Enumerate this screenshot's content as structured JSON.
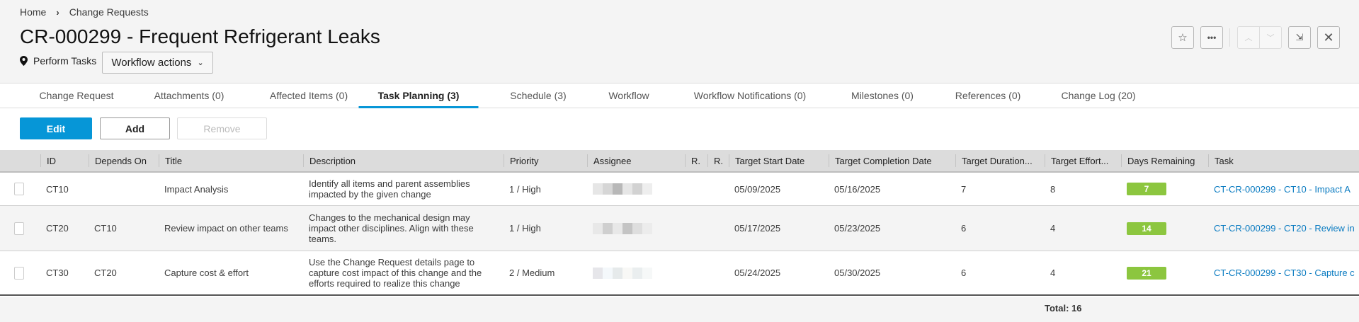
{
  "breadcrumb": {
    "home": "Home",
    "current": "Change Requests"
  },
  "header": {
    "title": "CR-000299 - Frequent Refrigerant Leaks",
    "stage": "Perform Tasks",
    "workflow_actions": "Workflow actions"
  },
  "icons": {
    "star": "star-icon",
    "more": "more-icon",
    "up": "chevron-up-icon",
    "down": "chevron-down-icon",
    "collapse": "collapse-icon",
    "close": "close-icon"
  },
  "tabs": [
    {
      "label": "Change Request"
    },
    {
      "label": "Attachments (0)"
    },
    {
      "label": "Affected Items (0)"
    },
    {
      "label": "Task Planning (3)",
      "active": true
    },
    {
      "label": "Schedule (3)"
    },
    {
      "label": "Workflow"
    },
    {
      "label": "Workflow Notifications (0)"
    },
    {
      "label": "Milestones (0)"
    },
    {
      "label": "References (0)"
    },
    {
      "label": "Change Log (20)"
    }
  ],
  "toolbar": {
    "edit": "Edit",
    "add": "Add",
    "remove": "Remove"
  },
  "table": {
    "columns": [
      "",
      "ID",
      "Depends On",
      "Title",
      "Description",
      "Priority",
      "Assignee",
      "R.",
      "R.",
      "Target Start Date",
      "Target Completion Date",
      "Target Duration...",
      "Target Effort...",
      "Days Remaining",
      "Task"
    ],
    "rows": [
      {
        "id": "CT10",
        "depends_on": "",
        "title": "Impact Analysis",
        "description": "Identify all items and parent assemblies impacted by the given change",
        "priority": "1 / High",
        "start": "05/09/2025",
        "completion": "05/16/2025",
        "duration": "7",
        "effort": "8",
        "days_remaining": "7",
        "task": "CT-CR-000299 - CT10 - Impact A"
      },
      {
        "id": "CT20",
        "depends_on": "CT10",
        "title": "Review impact on other teams",
        "description": "Changes to the mechanical design may impact other disciplines. Align with these teams.",
        "priority": "1 / High",
        "start": "05/17/2025",
        "completion": "05/23/2025",
        "duration": "6",
        "effort": "4",
        "days_remaining": "14",
        "task": "CT-CR-000299 - CT20 - Review in"
      },
      {
        "id": "CT30",
        "depends_on": "CT20",
        "title": "Capture cost & effort",
        "description": "Use the Change Request details page to capture cost impact of this change and the efforts required to realize this change",
        "priority": "2 / Medium",
        "start": "05/24/2025",
        "completion": "05/30/2025",
        "duration": "6",
        "effort": "4",
        "days_remaining": "21",
        "task": "CT-CR-000299 - CT30 - Capture c"
      }
    ],
    "total": "Total: 16"
  },
  "colors": {
    "accent": "#0696d7",
    "badge": "#8cc63f",
    "link": "#0a7bc1"
  }
}
